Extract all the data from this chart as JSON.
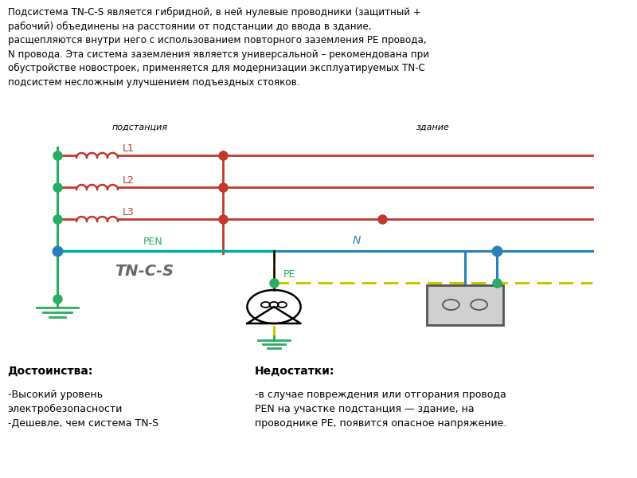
{
  "title_text": "Подсистема TN-C-S является гибридной, в ней нулевые проводники (защитный +\nрабочий) объединены на расстоянии от подстанции до ввода в здание,\nрасщепляются внутри него с использованием повторного заземления PE провода,\nN провода. Эта система заземления является универсальной – рекомендована при\nобустройстве новостроек, применяется для модернизации эксплуатируемых TN-C\nподсистем несложным улучшением подъездных стояков.",
  "label_podstancia": "подстанция",
  "label_zdanie": "здание",
  "label_L1": "L1",
  "label_L2": "L2",
  "label_L3": "L3",
  "label_PEN": "PEN",
  "label_N": "N",
  "label_PE": "PE",
  "label_TNCS": "TN-C-S",
  "color_red": "#c0392b",
  "color_green": "#27ae60",
  "color_blue": "#2980b9",
  "color_pen": "#00aaaa",
  "color_pen_label": "#27ae60",
  "color_pe_dashed_outer": "#c8c800",
  "color_pe_dashed_inner": "#27ae60",
  "color_text": "#000000",
  "color_bg": "#ffffff",
  "advantages_title": "Достоинства:",
  "advantages_text": "-Высокий уровень\nэлектробезопасности\n-Дешевле, чем система TN-S",
  "disadvantages_title": "Недостатки:",
  "disadvantages_text": "-в случае повреждения или отгорания провода\nPEN на участке подстанция — здание, на\nпроводнике PE, появится опасное напряжение."
}
